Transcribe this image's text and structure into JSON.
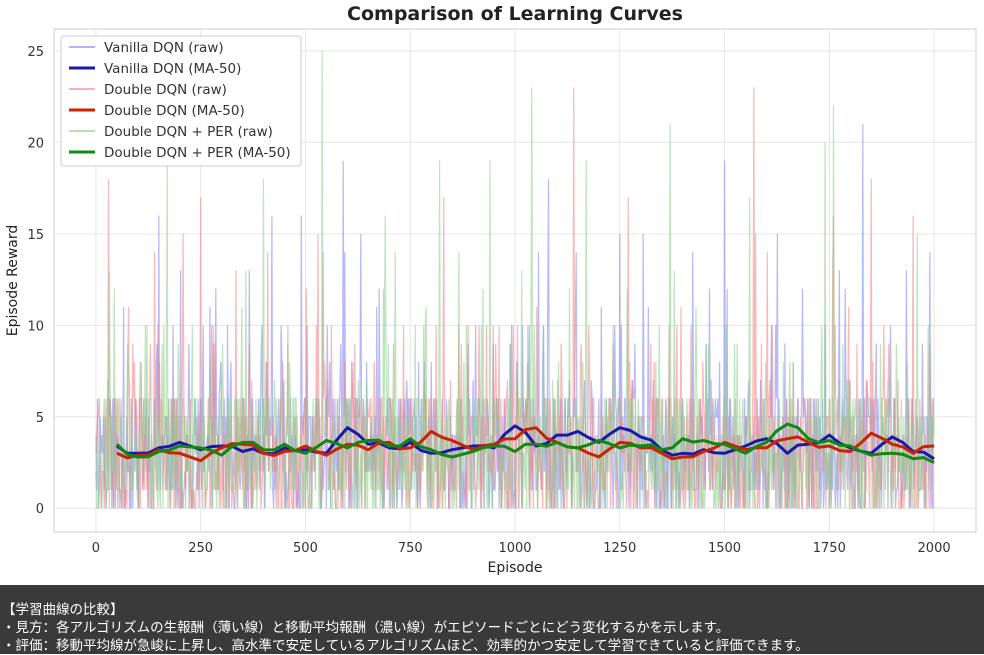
{
  "chart_data": {
    "type": "line",
    "title": "Comparison of Learning Curves",
    "xlabel": "Episode",
    "ylabel": "Episode Reward",
    "xlim": [
      -100,
      2100
    ],
    "ylim": [
      -1.3,
      26.2
    ],
    "x_ticks": [
      0,
      250,
      500,
      750,
      1000,
      1250,
      1500,
      1750,
      2000
    ],
    "y_ticks": [
      0,
      5,
      10,
      15,
      20,
      25
    ],
    "grid": true,
    "legend_position": "top-left",
    "series": [
      {
        "name": "Vanilla DQN (raw)",
        "kind": "raw",
        "color": "#8080ee",
        "seed": 11,
        "peaks": [
          [
            150,
            16
          ],
          [
            195,
            18
          ],
          [
            225,
            15
          ],
          [
            420,
            16
          ],
          [
            490,
            16
          ],
          [
            590,
            19
          ],
          [
            1080,
            18
          ],
          [
            1250,
            15
          ],
          [
            1500,
            19
          ],
          [
            1830,
            21
          ],
          [
            1990,
            14
          ]
        ]
      },
      {
        "name": "Vanilla DQN (MA-50)",
        "kind": "ma",
        "color": "#1a1aaa",
        "x": [
          50,
          100,
          150,
          200,
          250,
          300,
          350,
          400,
          450,
          500,
          550,
          600,
          650,
          700,
          750,
          800,
          850,
          900,
          950,
          1000,
          1050,
          1100,
          1150,
          1200,
          1250,
          1300,
          1350,
          1400,
          1450,
          1500,
          1550,
          1600,
          1650,
          1700,
          1750,
          1800,
          1850,
          1900,
          1950,
          2000
        ],
        "values": [
          3.4,
          3.0,
          3.3,
          3.6,
          3.2,
          3.4,
          3.1,
          3.0,
          3.3,
          3.2,
          3.0,
          4.4,
          3.5,
          3.3,
          3.6,
          3.0,
          3.2,
          3.4,
          3.3,
          4.5,
          3.4,
          4.0,
          4.2,
          3.6,
          4.4,
          3.9,
          3.2,
          3.0,
          3.2,
          3.0,
          3.4,
          3.8,
          3.0,
          3.5,
          4.0,
          3.3,
          3.0,
          3.9,
          3.1,
          2.7
        ]
      },
      {
        "name": "Double DQN (raw)",
        "kind": "raw",
        "color": "#f08080",
        "seed": 23,
        "peaks": [
          [
            30,
            18
          ],
          [
            140,
            14
          ],
          [
            250,
            17
          ],
          [
            410,
            14
          ],
          [
            530,
            15
          ],
          [
            830,
            17
          ],
          [
            1140,
            23
          ],
          [
            1270,
            17
          ],
          [
            1570,
            23
          ],
          [
            1760,
            16
          ],
          [
            1850,
            18
          ],
          [
            1950,
            16
          ]
        ]
      },
      {
        "name": "Double DQN (MA-50)",
        "kind": "ma",
        "color": "#cc2200",
        "x": [
          50,
          100,
          150,
          200,
          250,
          300,
          350,
          400,
          450,
          500,
          550,
          600,
          650,
          700,
          750,
          800,
          850,
          900,
          950,
          1000,
          1050,
          1100,
          1150,
          1200,
          1250,
          1300,
          1350,
          1400,
          1450,
          1500,
          1550,
          1600,
          1650,
          1700,
          1750,
          1800,
          1850,
          1900,
          1950,
          2000
        ],
        "values": [
          3.0,
          2.9,
          3.2,
          3.0,
          2.6,
          3.3,
          3.5,
          3.0,
          3.1,
          3.4,
          2.9,
          3.5,
          3.2,
          3.6,
          3.3,
          4.2,
          3.7,
          3.2,
          3.5,
          3.8,
          4.4,
          3.6,
          3.3,
          2.8,
          3.6,
          3.3,
          3.0,
          2.8,
          3.1,
          3.6,
          3.2,
          3.3,
          3.8,
          3.6,
          3.4,
          3.1,
          4.1,
          3.5,
          3.0,
          3.4
        ]
      },
      {
        "name": "Double DQN + PER (raw)",
        "kind": "raw",
        "color": "#88cc88",
        "seed": 37,
        "peaks": [
          [
            170,
            19
          ],
          [
            400,
            18
          ],
          [
            540,
            25
          ],
          [
            690,
            16
          ],
          [
            820,
            19
          ],
          [
            940,
            19
          ],
          [
            1040,
            23
          ],
          [
            1170,
            19
          ],
          [
            1370,
            21
          ],
          [
            1560,
            17
          ],
          [
            1740,
            20
          ],
          [
            1760,
            22
          ],
          [
            1960,
            15
          ]
        ]
      },
      {
        "name": "Double DQN + PER (MA-50)",
        "kind": "ma",
        "color": "#118811",
        "x": [
          50,
          100,
          150,
          200,
          250,
          300,
          350,
          400,
          450,
          500,
          550,
          600,
          650,
          700,
          750,
          800,
          850,
          900,
          950,
          1000,
          1050,
          1100,
          1150,
          1200,
          1250,
          1300,
          1350,
          1400,
          1450,
          1500,
          1550,
          1600,
          1650,
          1700,
          1750,
          1800,
          1850,
          1900,
          1950,
          2000
        ],
        "values": [
          3.5,
          2.8,
          3.1,
          3.4,
          3.3,
          2.9,
          3.6,
          3.2,
          3.5,
          3.0,
          3.7,
          3.3,
          3.7,
          3.4,
          3.8,
          3.2,
          2.8,
          3.1,
          3.4,
          3.1,
          3.5,
          3.6,
          3.3,
          3.7,
          3.3,
          3.4,
          3.2,
          3.8,
          3.7,
          3.5,
          3.0,
          3.6,
          4.6,
          3.8,
          3.7,
          3.4,
          2.9,
          3.0,
          2.7,
          2.5
        ]
      }
    ]
  },
  "caption": {
    "line1": "【学習曲線の比較】",
    "line2": "・見方：各アルゴリズムの生報酬（薄い線）と移動平均報酬（濃い線）がエピソードごとにどう変化するかを示します。",
    "line3": "・評価：移動平均線が急峻に上昇し、高水準で安定しているアルゴリズムほど、効率的かつ安定して学習できていると評価できます。"
  }
}
